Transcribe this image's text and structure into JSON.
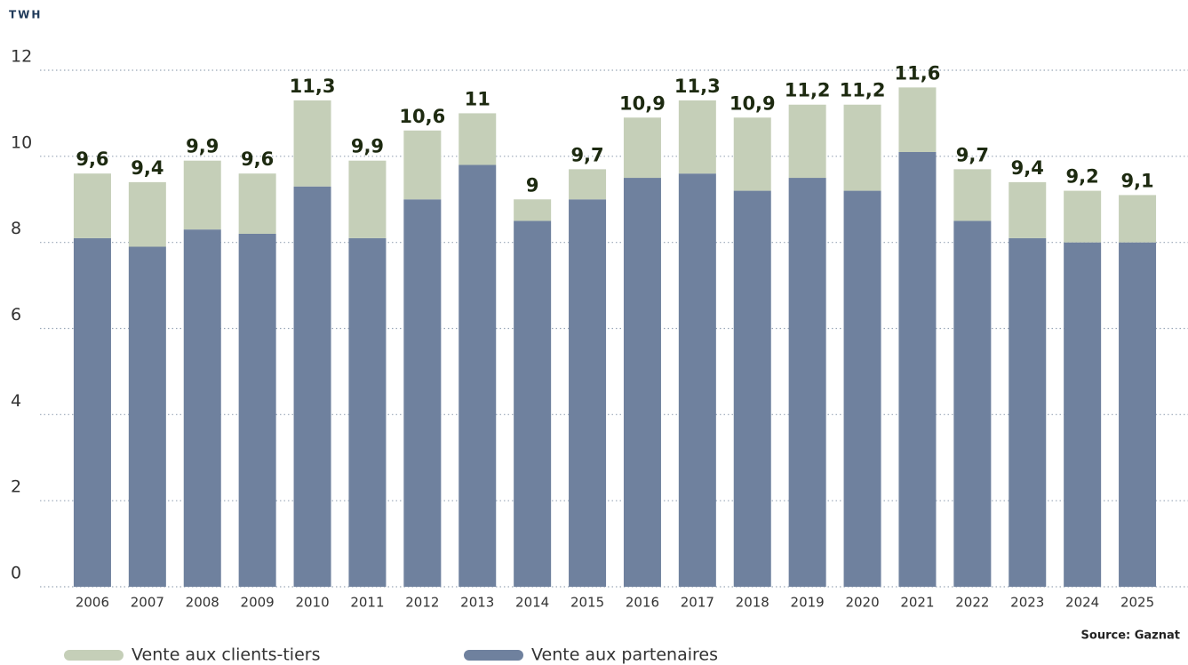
{
  "chart_data": {
    "type": "stacked_bar",
    "unit_label": "TWH",
    "source": "Source: Gaznat",
    "categories": [
      "2006",
      "2007",
      "2008",
      "2009",
      "2010",
      "2011",
      "2012",
      "2013",
      "2014",
      "2015",
      "2016",
      "2017",
      "2018",
      "2019",
      "2020",
      "2021",
      "2022",
      "2023",
      "2024",
      "2025"
    ],
    "series": [
      {
        "name": "Vente aux partenaires",
        "color": "#6f819e",
        "values": [
          8.1,
          7.9,
          8.3,
          8.2,
          9.3,
          8.1,
          9.0,
          9.8,
          8.5,
          9.0,
          9.5,
          9.6,
          9.2,
          9.5,
          9.2,
          10.1,
          8.5,
          8.1,
          8.0,
          8.0
        ]
      },
      {
        "name": "Vente aux clients-tiers",
        "color": "#c5cfb8",
        "values": [
          1.5,
          1.5,
          1.6,
          1.4,
          2.0,
          1.8,
          1.6,
          1.2,
          0.5,
          0.7,
          1.4,
          1.7,
          1.7,
          1.7,
          2.0,
          1.5,
          1.2,
          1.3,
          1.2,
          1.1
        ]
      }
    ],
    "totals": [
      9.6,
      9.4,
      9.9,
      9.6,
      11.3,
      9.9,
      10.6,
      11,
      9,
      9.7,
      10.9,
      11.3,
      10.9,
      11.2,
      11.2,
      11.6,
      9.7,
      9.4,
      9.2,
      9.1
    ],
    "total_labels": [
      "9,6",
      "9,4",
      "9,9",
      "9,6",
      "11,3",
      "9,9",
      "10,6",
      "11",
      "9",
      "9,7",
      "10,9",
      "11,3",
      "10,9",
      "11,2",
      "11,2",
      "11,6",
      "9,7",
      "9,4",
      "9,2",
      "9,1"
    ],
    "ylim": [
      0,
      12
    ],
    "yticks": [
      0,
      2,
      4,
      6,
      8,
      10,
      12
    ],
    "grid": true,
    "legend": "bottom"
  }
}
